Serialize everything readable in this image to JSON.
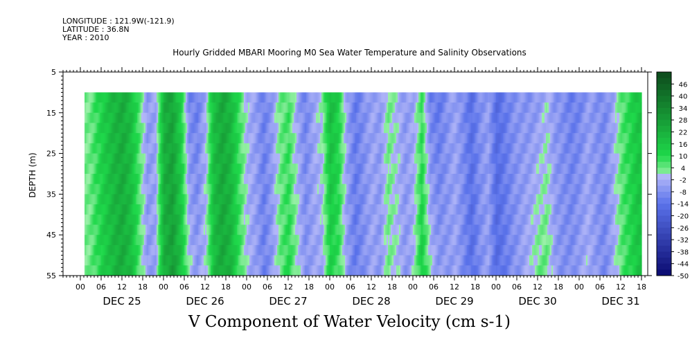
{
  "header": {
    "longitude": "LONGITUDE : 121.9W(-121.9)",
    "latitude": "LATITUDE : 36.8N",
    "year": "YEAR : 2010"
  },
  "chart_data": {
    "type": "heatmap",
    "title": "Hourly Gridded MBARI Mooring M0 Sea Water Temperature and Salinity Observations",
    "xlabel": "V Component of Water Velocity (cm s-1)",
    "ylabel": "DEPTH (m)",
    "y_ticks": [
      "5",
      "15",
      "25",
      "35",
      "45",
      "55"
    ],
    "ylim": [
      55,
      5
    ],
    "data_depth_range": [
      10,
      55
    ],
    "x_hour_ticks": [
      "00",
      "06",
      "12",
      "18",
      "00",
      "06",
      "12",
      "18",
      "00",
      "06",
      "12",
      "18",
      "00",
      "06",
      "12",
      "18",
      "00",
      "06",
      "12",
      "18",
      "00",
      "06",
      "12",
      "18",
      "00",
      "06",
      "12",
      "18"
    ],
    "x_day_labels": [
      "DEC 25",
      "DEC 26",
      "DEC 27",
      "DEC 28",
      "DEC 29",
      "DEC 30",
      "DEC 31"
    ],
    "colorbar_labels": [
      "46",
      "40",
      "34",
      "28",
      "22",
      "16",
      "10",
      "4",
      "-2",
      "-8",
      "-14",
      "-20",
      "-26",
      "-32",
      "-38",
      "-44",
      "-50"
    ],
    "colorbar_range": [
      -50,
      52
    ],
    "colors": {
      "positive_max": "#0d4a1c",
      "positive_mid": "#1ed84a",
      "positive_low": "#9af0a8",
      "negative_low": "#b4b8f8",
      "negative_mid": "#5a72ea",
      "negative_max": "#0a0a70"
    },
    "profiles": [
      {
        "day": 1.1,
        "v": 3
      },
      {
        "day": 1.2,
        "v": 9
      },
      {
        "day": 1.3,
        "v": 15
      },
      {
        "day": 1.4,
        "v": 20
      },
      {
        "day": 1.5,
        "v": 23
      },
      {
        "day": 1.6,
        "v": 18
      },
      {
        "day": 1.7,
        "v": 6
      },
      {
        "day": 1.8,
        "v": -6
      },
      {
        "day": 1.9,
        "v": -4
      },
      {
        "day": 2.0,
        "v": 22
      },
      {
        "day": 2.1,
        "v": 26
      },
      {
        "day": 2.2,
        "v": 14
      },
      {
        "day": 2.3,
        "v": -6
      },
      {
        "day": 2.4,
        "v": -9
      },
      {
        "day": 2.5,
        "v": -2
      },
      {
        "day": 2.6,
        "v": 18
      },
      {
        "day": 2.7,
        "v": 24
      },
      {
        "day": 2.8,
        "v": 20
      },
      {
        "day": 2.9,
        "v": 8
      },
      {
        "day": 3.0,
        "v": -2
      },
      {
        "day": 3.1,
        "v": -5
      },
      {
        "day": 3.2,
        "v": -11
      },
      {
        "day": 3.3,
        "v": -6
      },
      {
        "day": 3.4,
        "v": 4
      },
      {
        "day": 3.5,
        "v": 8
      },
      {
        "day": 3.6,
        "v": -2
      },
      {
        "day": 3.7,
        "v": -9
      },
      {
        "day": 3.8,
        "v": -4
      },
      {
        "day": 3.9,
        "v": -1
      },
      {
        "day": 4.0,
        "v": 16
      },
      {
        "day": 4.1,
        "v": 10
      },
      {
        "day": 4.2,
        "v": -5
      },
      {
        "day": 4.3,
        "v": -12
      },
      {
        "day": 4.4,
        "v": -8
      },
      {
        "day": 4.5,
        "v": -4
      },
      {
        "day": 4.6,
        "v": -6
      },
      {
        "day": 4.7,
        "v": 3
      },
      {
        "day": 4.8,
        "v": -1
      },
      {
        "day": 4.9,
        "v": -6
      },
      {
        "day": 5.0,
        "v": -3
      },
      {
        "day": 5.1,
        "v": 10
      },
      {
        "day": 5.2,
        "v": -6
      },
      {
        "day": 5.3,
        "v": -10
      },
      {
        "day": 5.4,
        "v": -7
      },
      {
        "day": 5.5,
        "v": -4
      },
      {
        "day": 5.6,
        "v": -9
      },
      {
        "day": 5.7,
        "v": -15
      },
      {
        "day": 5.8,
        "v": -8
      },
      {
        "day": 5.9,
        "v": -5
      },
      {
        "day": 6.0,
        "v": -16
      },
      {
        "day": 6.1,
        "v": -12
      },
      {
        "day": 6.2,
        "v": -8
      },
      {
        "day": 6.3,
        "v": -6
      },
      {
        "day": 6.4,
        "v": -5
      },
      {
        "day": 6.5,
        "v": -2
      },
      {
        "day": 6.6,
        "v": 1
      },
      {
        "day": 6.7,
        "v": -6
      },
      {
        "day": 6.8,
        "v": -8
      },
      {
        "day": 6.9,
        "v": -10
      },
      {
        "day": 7.0,
        "v": -8
      },
      {
        "day": 7.1,
        "v": -4
      },
      {
        "day": 7.2,
        "v": -7
      },
      {
        "day": 7.3,
        "v": -9
      },
      {
        "day": 7.4,
        "v": -4
      },
      {
        "day": 7.5,
        "v": 5
      },
      {
        "day": 7.6,
        "v": 10
      },
      {
        "day": 7.7,
        "v": 16
      }
    ],
    "profile_depth_shift": [
      {
        "day": 2.3,
        "shift": 10
      },
      {
        "day": 3.6,
        "shift": 6
      },
      {
        "day": 4.0,
        "shift": -8
      },
      {
        "day": 5.2,
        "shift": 12
      },
      {
        "day": 6.5,
        "shift": 10
      },
      {
        "day": 7.0,
        "shift": 6
      }
    ]
  }
}
